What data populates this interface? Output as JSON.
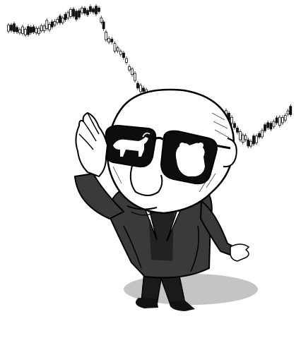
{
  "illustration": {
    "subject": "caricature",
    "colors": {
      "ink": "#111111",
      "paper": "#ffffff",
      "skin_shade": "#d9d9d9",
      "lens": "#0d0d0d",
      "shadow": "#bdbdbd"
    },
    "icons": [
      "bull-icon",
      "bear-icon"
    ]
  }
}
